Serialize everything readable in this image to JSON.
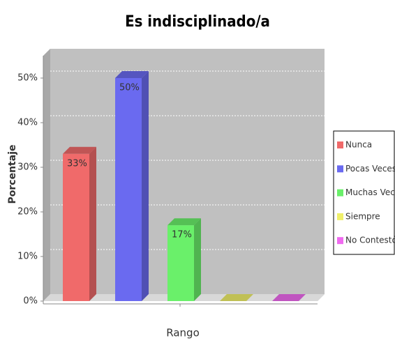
{
  "chart_data": {
    "type": "bar3d",
    "title": "Es indisciplinado/a",
    "x_label": "Rango",
    "y_label": "Porcentaje",
    "categories": [
      null
    ],
    "series": [
      {
        "name": "Nunca",
        "color": "#f06a6a",
        "values": [
          33
        ],
        "value_labels": [
          "33%"
        ]
      },
      {
        "name": "Pocas Veces",
        "color": "#6a6af0",
        "values": [
          50
        ],
        "value_labels": [
          "50%"
        ]
      },
      {
        "name": "Muchas Veces",
        "color": "#6af06a",
        "values": [
          17
        ],
        "value_labels": [
          "17%"
        ]
      },
      {
        "name": "Siempre",
        "color": "#f0f06a",
        "values": [
          0
        ],
        "value_labels": [
          null
        ]
      },
      {
        "name": "No Contestó",
        "color": "#f06af0",
        "values": [
          0
        ],
        "value_labels": [
          null
        ]
      }
    ],
    "ylim": [
      0,
      55
    ],
    "yticks": [
      {
        "value": 0,
        "label": "0%"
      },
      {
        "value": 10,
        "label": "10%"
      },
      {
        "value": 20,
        "label": "20%"
      },
      {
        "value": 30,
        "label": "30%"
      },
      {
        "value": 40,
        "label": "40%"
      },
      {
        "value": 50,
        "label": "50%"
      }
    ],
    "grid": true,
    "legend": "right"
  }
}
